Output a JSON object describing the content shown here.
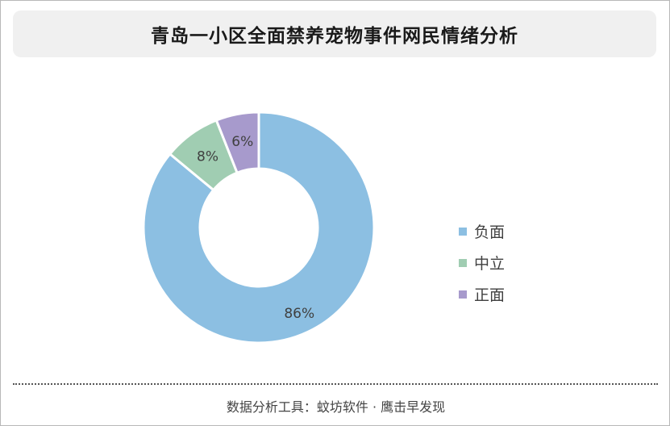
{
  "title": "青岛一小区全面禁养宠物事件网民情绪分析",
  "footer": "数据分析工具：蚊坊软件 · 鹰击早发现",
  "chart_data": {
    "type": "pie",
    "subtype": "donut",
    "categories": [
      "负面",
      "中立",
      "正面"
    ],
    "values": [
      86,
      8,
      6
    ],
    "data_labels": [
      "86%",
      "8%",
      "6%"
    ],
    "colors": [
      "#8cbfe2",
      "#a0cdb2",
      "#a79acc"
    ],
    "legend_position": "right"
  }
}
